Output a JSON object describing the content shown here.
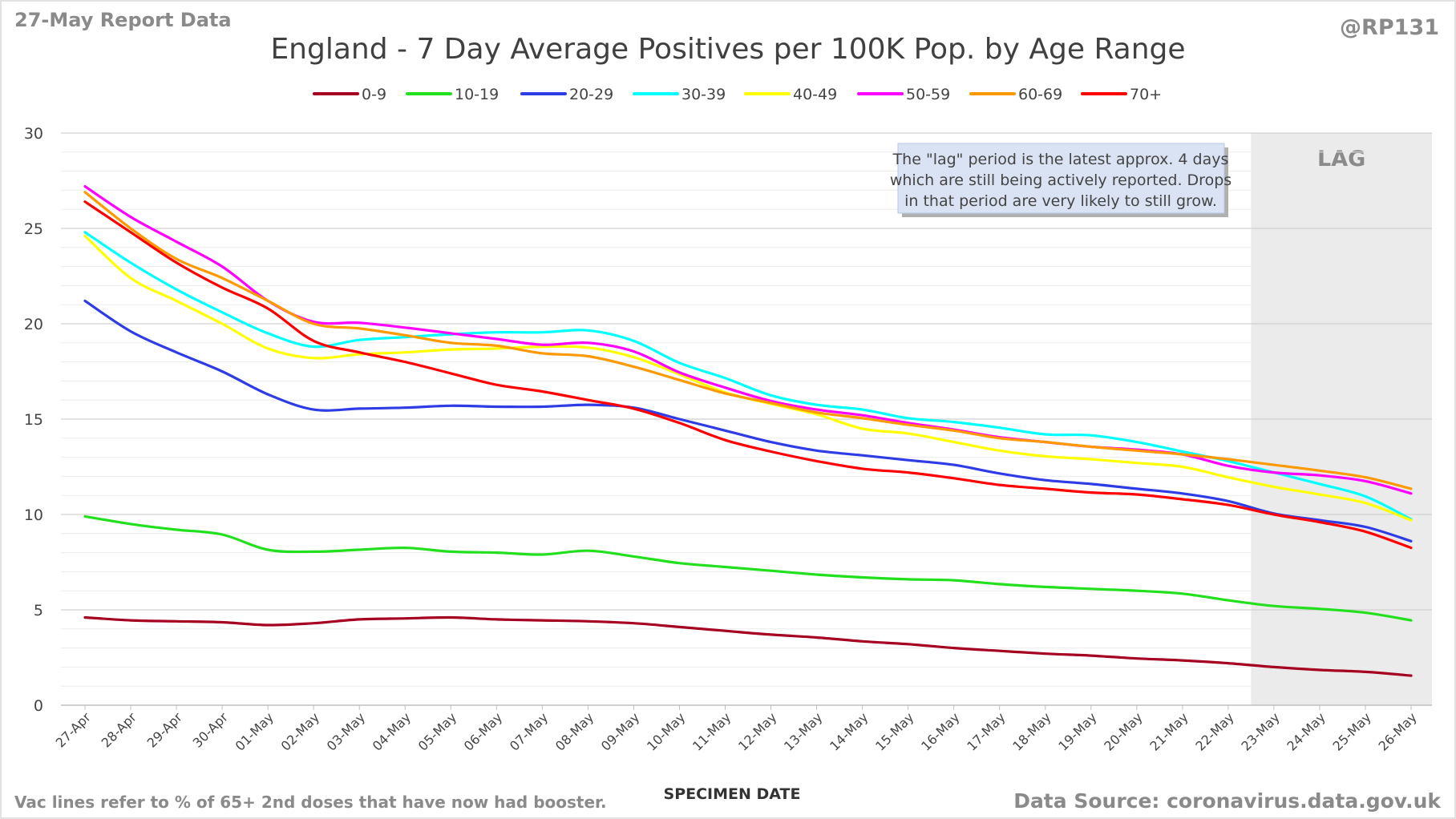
{
  "header": {
    "report_label": "27-May Report Data",
    "handle": "@RP131"
  },
  "footer": {
    "note": "Vac lines refer to % of 65+ 2nd doses that have now had booster.",
    "source": "Data Source: coronavirus.data.gov.uk"
  },
  "annotation": {
    "lines": [
      "The \"lag\" period is the latest approx. 4 days",
      "which are still being actively reported.  Drops",
      "in that period are very likely to still grow."
    ],
    "lag_label": "LAG",
    "lag_start": "22-May",
    "lag_shade_color": "#ebebeb"
  },
  "chart_data": {
    "type": "line",
    "title": "England - 7 Day Average Positives per 100K Pop. by Age Range",
    "xlabel": "SPECIMEN DATE",
    "ylabel": "",
    "ylim": [
      0,
      30
    ],
    "yticks": [
      0,
      5,
      10,
      15,
      20,
      25,
      30
    ],
    "grid": true,
    "legend_position": "top",
    "categories": [
      "27-Apr",
      "28-Apr",
      "29-Apr",
      "30-Apr",
      "01-May",
      "02-May",
      "03-May",
      "04-May",
      "05-May",
      "06-May",
      "07-May",
      "08-May",
      "09-May",
      "10-May",
      "11-May",
      "12-May",
      "13-May",
      "14-May",
      "15-May",
      "16-May",
      "17-May",
      "18-May",
      "19-May",
      "20-May",
      "21-May",
      "22-May",
      "23-May",
      "24-May",
      "25-May",
      "26-May"
    ],
    "series": [
      {
        "name": "0-9",
        "color": "#a50021",
        "values": [
          4.6,
          4.45,
          4.4,
          4.35,
          4.2,
          4.3,
          4.5,
          4.55,
          4.6,
          4.5,
          4.45,
          4.4,
          4.3,
          4.1,
          3.9,
          3.7,
          3.55,
          3.35,
          3.2,
          3.0,
          2.85,
          2.7,
          2.6,
          2.45,
          2.35,
          2.2,
          2.0,
          1.85,
          1.75,
          1.55
        ]
      },
      {
        "name": "10-19",
        "color": "#22e01e",
        "values": [
          9.9,
          9.5,
          9.2,
          8.95,
          8.15,
          8.05,
          8.15,
          8.25,
          8.05,
          8.0,
          7.9,
          8.1,
          7.8,
          7.45,
          7.25,
          7.05,
          6.85,
          6.7,
          6.6,
          6.55,
          6.35,
          6.2,
          6.1,
          6.0,
          5.85,
          5.5,
          5.2,
          5.05,
          4.85,
          4.45
        ]
      },
      {
        "name": "20-29",
        "color": "#2e3ce6",
        "values": [
          21.2,
          19.6,
          18.5,
          17.5,
          16.3,
          15.5,
          15.55,
          15.6,
          15.7,
          15.65,
          15.65,
          15.75,
          15.6,
          15.0,
          14.4,
          13.8,
          13.35,
          13.1,
          12.85,
          12.6,
          12.15,
          11.8,
          11.6,
          11.35,
          11.1,
          10.7,
          10.05,
          9.7,
          9.35,
          8.6
        ]
      },
      {
        "name": "30-39",
        "color": "#00ffff",
        "values": [
          24.8,
          23.2,
          21.8,
          20.6,
          19.5,
          18.8,
          19.15,
          19.3,
          19.45,
          19.55,
          19.55,
          19.65,
          19.1,
          17.95,
          17.15,
          16.25,
          15.75,
          15.5,
          15.05,
          14.85,
          14.55,
          14.2,
          14.15,
          13.8,
          13.3,
          12.8,
          12.2,
          11.6,
          10.95,
          9.75
        ]
      },
      {
        "name": "40-49",
        "color": "#ffff00",
        "values": [
          24.6,
          22.4,
          21.2,
          20.0,
          18.7,
          18.2,
          18.4,
          18.5,
          18.65,
          18.7,
          18.8,
          18.75,
          18.25,
          17.35,
          16.4,
          15.8,
          15.25,
          14.5,
          14.25,
          13.8,
          13.35,
          13.05,
          12.9,
          12.7,
          12.5,
          11.95,
          11.45,
          11.05,
          10.6,
          9.7
        ]
      },
      {
        "name": "50-59",
        "color": "#ff00ff",
        "values": [
          27.2,
          25.6,
          24.3,
          23.0,
          21.2,
          20.1,
          20.05,
          19.8,
          19.5,
          19.2,
          18.9,
          19.0,
          18.55,
          17.45,
          16.65,
          15.95,
          15.5,
          15.2,
          14.8,
          14.45,
          14.05,
          13.8,
          13.55,
          13.4,
          13.15,
          12.55,
          12.2,
          12.05,
          11.75,
          11.1
        ]
      },
      {
        "name": "60-69",
        "color": "#ff9900",
        "values": [
          26.9,
          25.0,
          23.4,
          22.4,
          21.2,
          20.0,
          19.75,
          19.4,
          19.0,
          18.85,
          18.45,
          18.3,
          17.75,
          17.05,
          16.35,
          15.85,
          15.35,
          15.05,
          14.7,
          14.4,
          14.0,
          13.8,
          13.55,
          13.35,
          13.15,
          12.9,
          12.6,
          12.3,
          11.95,
          11.35
        ]
      },
      {
        "name": "70+",
        "color": "#ff0000",
        "values": [
          26.4,
          24.8,
          23.2,
          21.9,
          20.8,
          19.1,
          18.5,
          18.0,
          17.4,
          16.8,
          16.45,
          16.0,
          15.55,
          14.8,
          13.9,
          13.3,
          12.8,
          12.4,
          12.2,
          11.9,
          11.55,
          11.35,
          11.15,
          11.05,
          10.8,
          10.5,
          10.0,
          9.6,
          9.1,
          8.25
        ]
      }
    ]
  }
}
